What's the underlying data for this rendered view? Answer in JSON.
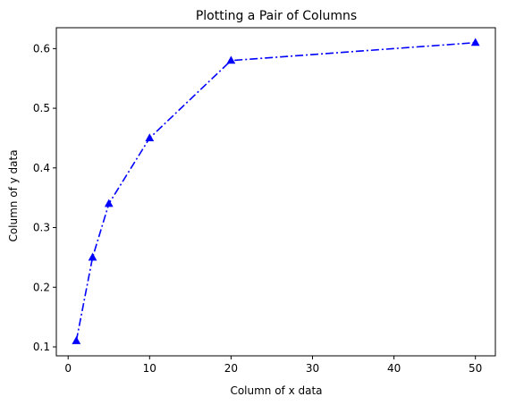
{
  "chart_data": {
    "type": "line",
    "title": "Plotting a Pair of Columns",
    "xlabel": "Column of x data",
    "ylabel": "Column of y data",
    "xlim": [
      -1.45,
      52.45
    ],
    "ylim": [
      0.085,
      0.635
    ],
    "xticks": [
      0,
      10,
      20,
      30,
      40,
      50
    ],
    "xtick_labels": [
      "0",
      "10",
      "20",
      "30",
      "40",
      "50"
    ],
    "yticks": [
      0.1,
      0.2,
      0.3,
      0.4,
      0.5,
      0.6
    ],
    "ytick_labels": [
      "0.1",
      "0.2",
      "0.3",
      "0.4",
      "0.5",
      "0.6"
    ],
    "grid": false,
    "series": [
      {
        "name": "y",
        "color": "#0000ff",
        "linestyle": "dashdot",
        "marker": "triangle-up",
        "x": [
          1,
          3,
          5,
          10,
          20,
          50
        ],
        "values": [
          0.11,
          0.25,
          0.34,
          0.45,
          0.58,
          0.61
        ]
      }
    ]
  }
}
